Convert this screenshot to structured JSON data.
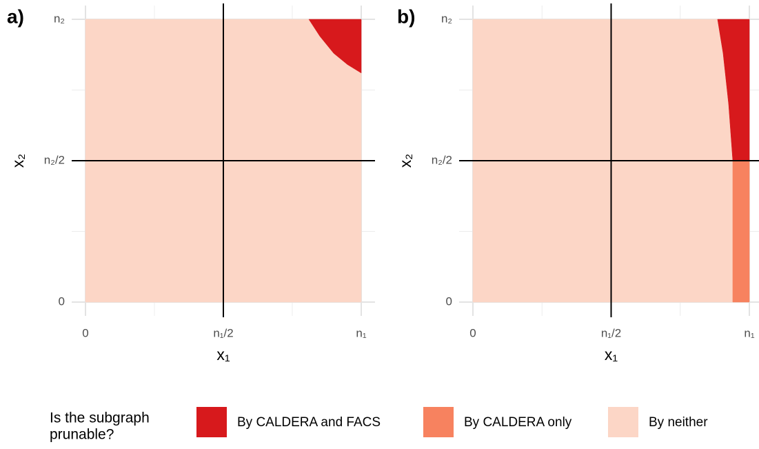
{
  "chart_data": [
    {
      "type": "region",
      "label": "a)",
      "xlabel": "x₁",
      "ylabel": "x₂",
      "xlim": [
        0,
        1
      ],
      "ylim": [
        0,
        1
      ],
      "xticks": [
        {
          "value": 0,
          "label": "0"
        },
        {
          "value": 0.5,
          "label": "n₁/2"
        },
        {
          "value": 1,
          "label": "n₁"
        }
      ],
      "yticks": [
        {
          "value": 0,
          "label": "0"
        },
        {
          "value": 0.5,
          "label": "n₂/2"
        },
        {
          "value": 1,
          "label": "n₂"
        }
      ],
      "minor_ticks": [
        0.25,
        0.75
      ],
      "grid": true,
      "vline": 0.5,
      "hline": 0.5,
      "regions": [
        {
          "class": 2,
          "x": [
            0,
            1,
            1,
            0
          ],
          "y": [
            0,
            0,
            1,
            1
          ]
        },
        {
          "class": 0,
          "x": [
            0.81,
            1,
            1,
            0.95,
            0.9,
            0.85
          ],
          "y": [
            1,
            1,
            0.81,
            0.84,
            0.88,
            0.94
          ]
        }
      ]
    },
    {
      "type": "region",
      "label": "b)",
      "xlabel": "x₁",
      "ylabel": "x₂",
      "xlim": [
        0,
        1
      ],
      "ylim": [
        0,
        1
      ],
      "xticks": [
        {
          "value": 0,
          "label": "0"
        },
        {
          "value": 0.5,
          "label": "n₁/2"
        },
        {
          "value": 1,
          "label": "n₁"
        }
      ],
      "yticks": [
        {
          "value": 0,
          "label": "0"
        },
        {
          "value": 0.5,
          "label": "n₂/2"
        },
        {
          "value": 1,
          "label": "n₂"
        }
      ],
      "minor_ticks": [
        0.25,
        0.75
      ],
      "grid": true,
      "vline": 0.5,
      "hline": 0.5,
      "regions": [
        {
          "class": 2,
          "x": [
            0,
            1,
            1,
            0
          ],
          "y": [
            0,
            0,
            1,
            1
          ]
        },
        {
          "class": 0,
          "x": [
            0.885,
            1,
            1,
            0.94,
            0.925,
            0.905
          ],
          "y": [
            1,
            1,
            0.5,
            0.5,
            0.7,
            0.88
          ]
        },
        {
          "class": 1,
          "x": [
            0.94,
            1,
            1,
            0.94
          ],
          "y": [
            0,
            0,
            0.5,
            0.5
          ]
        }
      ]
    }
  ],
  "legend": {
    "title_lines": [
      "Is the subgraph",
      "prunable?"
    ],
    "items": [
      {
        "name": "By CALDERA and FACS",
        "color": "#d7191c"
      },
      {
        "name": "By CALDERA only",
        "color": "#f7825f"
      },
      {
        "name": "By neither",
        "color": "#fcd6c6"
      }
    ]
  }
}
